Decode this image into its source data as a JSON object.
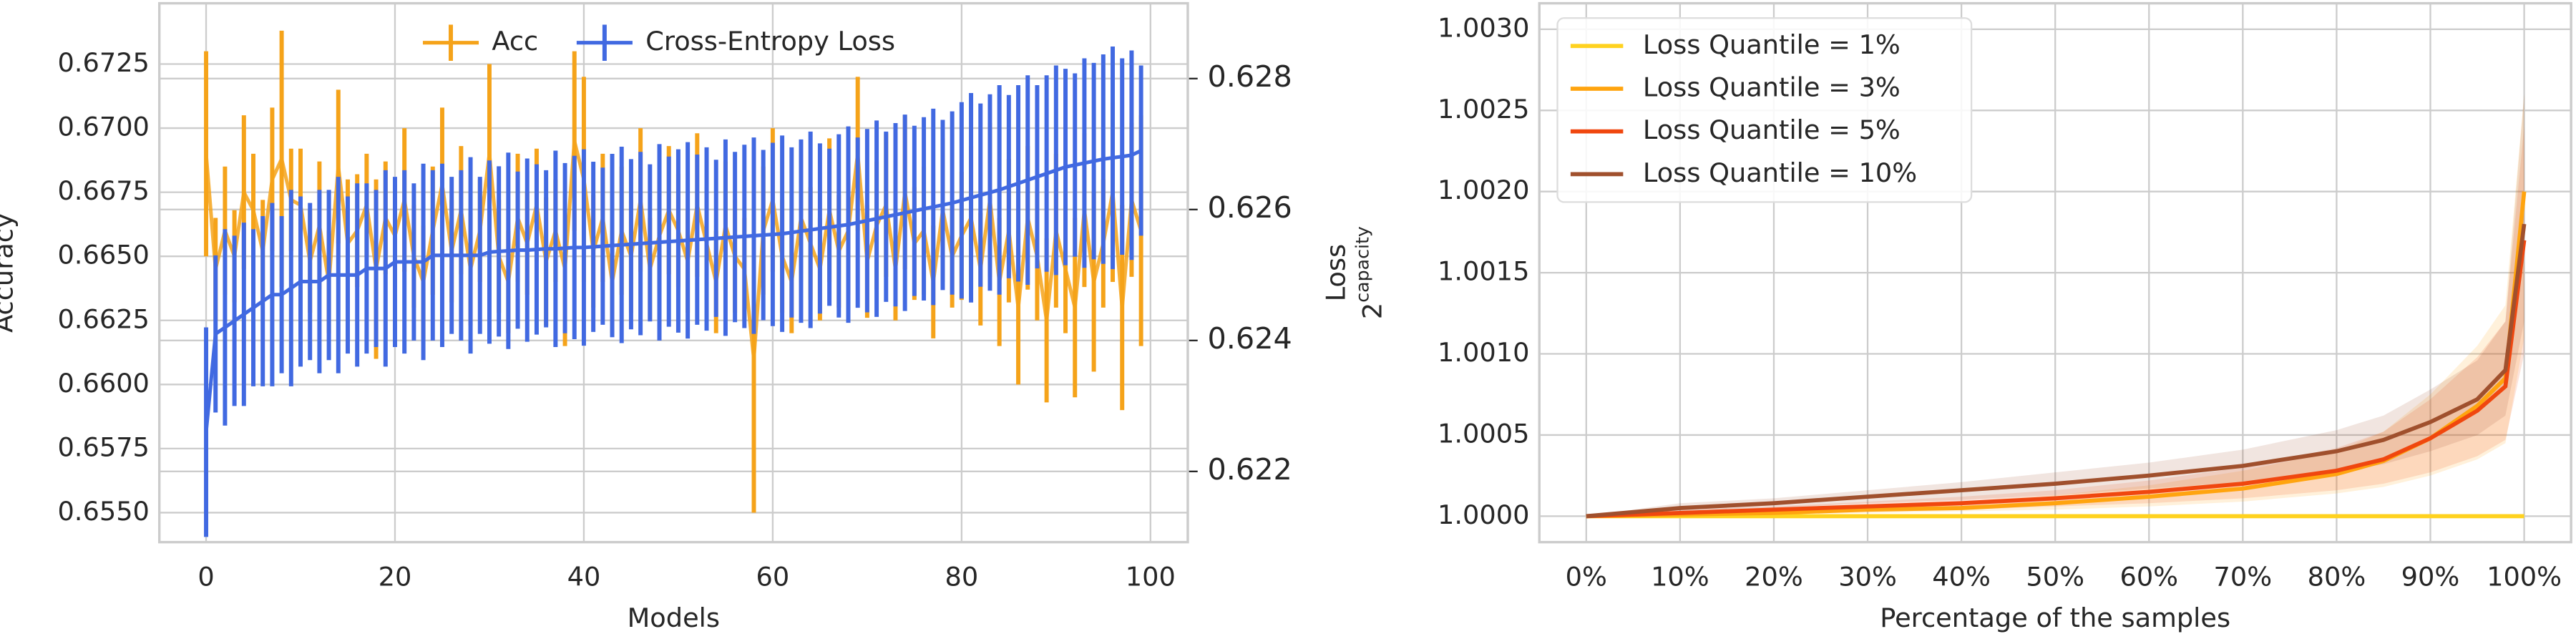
{
  "chart_data": [
    {
      "type": "errorbar",
      "xlabel": "Models",
      "ylabel": "Accuracy",
      "y2label": "Loss",
      "xlim": [
        -4.95,
        103.95
      ],
      "xticks": [
        0,
        20,
        40,
        60,
        80,
        100
      ],
      "ylim": [
        0.65385,
        0.67487
      ],
      "yticks": [
        {
          "value": 0.655,
          "label": "0.6550"
        },
        0.6575,
        {
          "value": 0.66,
          "label": "0.6600"
        },
        0.6625,
        {
          "value": 0.665,
          "label": "0.6650"
        },
        0.6675,
        {
          "value": 0.67,
          "label": "0.6700"
        },
        0.6725
      ],
      "y2lim": [
        0.62092,
        0.62915
      ],
      "y2ticks": [
        0.622,
        0.624,
        0.626,
        0.628
      ],
      "grid": true,
      "legend": "upper center",
      "x": [
        0,
        1,
        2,
        3,
        4,
        5,
        6,
        7,
        8,
        9,
        10,
        11,
        12,
        13,
        14,
        15,
        16,
        17,
        18,
        19,
        20,
        21,
        22,
        23,
        24,
        25,
        26,
        27,
        28,
        29,
        30,
        31,
        32,
        33,
        34,
        35,
        36,
        37,
        38,
        39,
        40,
        41,
        42,
        43,
        44,
        45,
        46,
        47,
        48,
        49,
        50,
        51,
        52,
        53,
        54,
        55,
        56,
        57,
        58,
        59,
        60,
        61,
        62,
        63,
        64,
        65,
        66,
        67,
        68,
        69,
        70,
        71,
        72,
        73,
        74,
        75,
        76,
        77,
        78,
        79,
        80,
        81,
        82,
        83,
        84,
        85,
        86,
        87,
        88,
        89,
        90,
        91,
        92,
        93,
        94,
        95,
        96,
        97,
        98,
        99
      ],
      "series": [
        {
          "name": "Acc",
          "color": "#f5a31a",
          "values": [
            0.669,
            0.6645,
            0.666,
            0.665,
            0.6675,
            0.6668,
            0.6652,
            0.668,
            0.6688,
            0.6672,
            0.667,
            0.6648,
            0.6662,
            0.664,
            0.6685,
            0.6655,
            0.666,
            0.667,
            0.6645,
            0.6665,
            0.6658,
            0.6672,
            0.665,
            0.664,
            0.666,
            0.6678,
            0.6652,
            0.6668,
            0.6645,
            0.666,
            0.669,
            0.665,
            0.664,
            0.6665,
            0.6655,
            0.667,
            0.6648,
            0.666,
            0.6645,
            0.6695,
            0.668,
            0.6652,
            0.6665,
            0.664,
            0.666,
            0.665,
            0.6672,
            0.6645,
            0.6658,
            0.6668,
            0.666,
            0.6648,
            0.667,
            0.6655,
            0.664,
            0.6662,
            0.665,
            0.6645,
            0.661,
            0.666,
            0.6672,
            0.665,
            0.664,
            0.6665,
            0.6655,
            0.6645,
            0.6668,
            0.6652,
            0.666,
            0.669,
            0.6648,
            0.6662,
            0.667,
            0.6645,
            0.6675,
            0.6655,
            0.666,
            0.664,
            0.6668,
            0.665,
            0.6658,
            0.6665,
            0.6645,
            0.6672,
            0.664,
            0.666,
            0.663,
            0.6665,
            0.665,
            0.6625,
            0.666,
            0.6645,
            0.663,
            0.6668,
            0.664,
            0.6655,
            0.6675,
            0.663,
            0.6672,
            0.666
          ],
          "errors": [
            0.004,
            0.002,
            0.0025,
            0.0018,
            0.003,
            0.0022,
            0.002,
            0.0028,
            0.005,
            0.002,
            0.0022,
            0.002,
            0.0025,
            0.002,
            0.003,
            0.0025,
            0.0022,
            0.002,
            0.0035,
            0.0022,
            0.002,
            0.0028,
            0.002,
            0.0022,
            0.0025,
            0.003,
            0.002,
            0.0025,
            0.0022,
            0.002,
            0.0035,
            0.0022,
            0.002,
            0.0025,
            0.002,
            0.0022,
            0.0025,
            0.002,
            0.003,
            0.0035,
            0.004,
            0.0022,
            0.0025,
            0.002,
            0.0025,
            0.0022,
            0.0028,
            0.002,
            0.0022,
            0.0025,
            0.0022,
            0.002,
            0.0028,
            0.0022,
            0.002,
            0.0025,
            0.0022,
            0.002,
            0.006,
            0.0025,
            0.0028,
            0.0022,
            0.002,
            0.0025,
            0.0022,
            0.002,
            0.0028,
            0.0022,
            0.0025,
            0.003,
            0.0022,
            0.0025,
            0.0028,
            0.002,
            0.003,
            0.0022,
            0.0025,
            0.0022,
            0.0028,
            0.002,
            0.0025,
            0.0028,
            0.0022,
            0.003,
            0.0025,
            0.0028,
            0.003,
            0.0028,
            0.0025,
            0.0032,
            0.003,
            0.0025,
            0.0035,
            0.003,
            0.0035,
            0.0025,
            0.0035,
            0.004,
            0.003,
            0.0045
          ]
        },
        {
          "name": "Cross-Entropy Loss",
          "color": "#4169e1",
          "axis": "y2",
          "values": [
            0.6226,
            0.6241,
            0.6242,
            0.6243,
            0.6244,
            0.6245,
            0.6246,
            0.6247,
            0.6247,
            0.6248,
            0.6249,
            0.6249,
            0.6249,
            0.625,
            0.625,
            0.625,
            0.625,
            0.6251,
            0.6251,
            0.6251,
            0.6252,
            0.6252,
            0.6252,
            0.6252,
            0.6253,
            0.6253,
            0.6253,
            0.6253,
            0.6253,
            0.6253,
            0.62535,
            0.62536,
            0.62537,
            0.62538,
            0.62538,
            0.62539,
            0.6254,
            0.6254,
            0.62541,
            0.62542,
            0.62542,
            0.62543,
            0.62544,
            0.62545,
            0.62546,
            0.62547,
            0.62548,
            0.62549,
            0.6255,
            0.62551,
            0.62552,
            0.62553,
            0.62554,
            0.62555,
            0.62556,
            0.62557,
            0.62558,
            0.62559,
            0.6256,
            0.62561,
            0.62562,
            0.62563,
            0.62565,
            0.62567,
            0.62569,
            0.62571,
            0.62573,
            0.62575,
            0.62577,
            0.6258,
            0.62583,
            0.62586,
            0.62589,
            0.62592,
            0.62595,
            0.62598,
            0.62601,
            0.62604,
            0.62607,
            0.6261,
            0.62614,
            0.62618,
            0.62622,
            0.62626,
            0.6263,
            0.62635,
            0.6264,
            0.62645,
            0.6265,
            0.62655,
            0.6266,
            0.62665,
            0.62668,
            0.62671,
            0.62674,
            0.62677,
            0.62679,
            0.62681,
            0.62683,
            0.6269
          ],
          "errors": [
            0.0016,
            0.0012,
            0.0015,
            0.0013,
            0.0014,
            0.0012,
            0.0013,
            0.0014,
            0.0012,
            0.0015,
            0.0013,
            0.0012,
            0.0014,
            0.0013,
            0.0015,
            0.0012,
            0.0014,
            0.0013,
            0.0012,
            0.0015,
            0.0013,
            0.0014,
            0.0012,
            0.0015,
            0.0013,
            0.0014,
            0.0012,
            0.0013,
            0.0015,
            0.0012,
            0.0014,
            0.0013,
            0.0015,
            0.0012,
            0.0014,
            0.0013,
            0.0012,
            0.0015,
            0.0013,
            0.0014,
            0.0015,
            0.0013,
            0.0012,
            0.0014,
            0.0015,
            0.0013,
            0.0014,
            0.0012,
            0.0015,
            0.0013,
            0.0014,
            0.0015,
            0.0013,
            0.0014,
            0.0012,
            0.0015,
            0.0013,
            0.0014,
            0.0015,
            0.0013,
            0.0014,
            0.0015,
            0.0013,
            0.0014,
            0.0015,
            0.0013,
            0.0012,
            0.0014,
            0.0015,
            0.0013,
            0.0014,
            0.0015,
            0.0013,
            0.0014,
            0.0015,
            0.0013,
            0.0014,
            0.0015,
            0.0013,
            0.0014,
            0.0015,
            0.0016,
            0.0014,
            0.0015,
            0.0016,
            0.0014,
            0.0015,
            0.0016,
            0.0014,
            0.0015,
            0.0016,
            0.0015,
            0.0014,
            0.0016,
            0.0015,
            0.0016,
            0.0017,
            0.0015,
            0.0016,
            0.0013
          ]
        }
      ]
    },
    {
      "type": "line",
      "xlabel": "Percentage of the samples",
      "ylabel_base": "2",
      "ylabel_sup": "capacity",
      "xlim": [
        -5,
        105
      ],
      "xticks": [
        {
          "value": 0,
          "label": "0%"
        },
        {
          "value": 10,
          "label": "10%"
        },
        {
          "value": 20,
          "label": "20%"
        },
        {
          "value": 30,
          "label": "30%"
        },
        {
          "value": 40,
          "label": "40%"
        },
        {
          "value": 50,
          "label": "50%"
        },
        {
          "value": 60,
          "label": "60%"
        },
        {
          "value": 70,
          "label": "70%"
        },
        {
          "value": 80,
          "label": "80%"
        },
        {
          "value": 90,
          "label": "90%"
        },
        {
          "value": 100,
          "label": "100%"
        }
      ],
      "ylim": [
        0.99984,
        1.00316
      ],
      "yticks": [
        {
          "value": 1.0,
          "label": "1.0000"
        },
        {
          "value": 1.0005,
          "label": "1.0005"
        },
        {
          "value": 1.001,
          "label": "1.0010"
        },
        {
          "value": 1.0015,
          "label": "1.0015"
        },
        {
          "value": 1.002,
          "label": "1.0020"
        },
        {
          "value": 1.0025,
          "label": "1.0025"
        },
        {
          "value": 1.003,
          "label": "1.0030"
        }
      ],
      "grid": true,
      "legend": "upper left",
      "x": [
        0,
        10,
        20,
        30,
        40,
        50,
        60,
        70,
        80,
        85,
        90,
        95,
        98,
        100
      ],
      "series": [
        {
          "name": "Loss Quantile = 1%",
          "color": "#ffd21f",
          "values": [
            1.0,
            1.0,
            1.0,
            1.0,
            1.0,
            1.0,
            1.0,
            1.0,
            1.0,
            1.0,
            1.0,
            1.0,
            1.0,
            1.0
          ]
        },
        {
          "name": "Loss Quantile = 3%",
          "color": "#ffa40f",
          "values": [
            1.0,
            1.00001,
            1.00002,
            1.00004,
            1.00005,
            1.00008,
            1.00012,
            1.00017,
            1.00026,
            1.00034,
            1.00048,
            1.00068,
            1.00085,
            1.002
          ],
          "band_lower": [
            1.0,
            1.0,
            1.00001,
            1.00002,
            1.00003,
            1.00004,
            1.00006,
            1.00009,
            1.00014,
            1.00018,
            1.00025,
            1.00035,
            1.00045,
            1.0011
          ],
          "band_upper": [
            1.0,
            1.00003,
            1.00005,
            1.00007,
            1.00009,
            1.00013,
            1.00019,
            1.00028,
            1.0004,
            1.00052,
            1.00075,
            1.00105,
            1.0013,
            1.0026
          ]
        },
        {
          "name": "Loss Quantile = 5%",
          "color": "#f0470f",
          "values": [
            1.0,
            1.00002,
            1.00004,
            1.00006,
            1.00008,
            1.00011,
            1.00015,
            1.0002,
            1.00028,
            1.00035,
            1.00048,
            1.00065,
            1.0008,
            1.0017
          ],
          "band_lower": [
            1.0,
            1.00001,
            1.00002,
            1.00003,
            1.00004,
            1.00006,
            1.00008,
            1.00011,
            1.00016,
            1.0002,
            1.00027,
            1.00037,
            1.00047,
            1.001
          ],
          "band_upper": [
            1.0,
            1.00004,
            1.00006,
            1.00009,
            1.00012,
            1.00016,
            1.00022,
            1.0003,
            1.00042,
            1.00052,
            1.00072,
            1.00098,
            1.0012,
            1.0024
          ]
        },
        {
          "name": "Loss Quantile = 10%",
          "color": "#a0502d",
          "values": [
            1.0,
            1.00005,
            1.00008,
            1.00012,
            1.00016,
            1.0002,
            1.00025,
            1.00031,
            1.0004,
            1.00047,
            1.00058,
            1.00072,
            1.0009,
            1.0018
          ],
          "band_lower": [
            1.0,
            1.00003,
            1.00005,
            1.00008,
            1.0001,
            1.00013,
            1.00017,
            1.00021,
            1.00027,
            1.00032,
            1.0004,
            1.0005,
            1.00062,
            1.0012
          ],
          "band_upper": [
            1.0,
            1.00008,
            1.00011,
            1.00016,
            1.00021,
            1.00027,
            1.00033,
            1.00041,
            1.00053,
            1.00062,
            1.00078,
            1.00096,
            1.0012,
            1.0026
          ]
        }
      ]
    }
  ]
}
